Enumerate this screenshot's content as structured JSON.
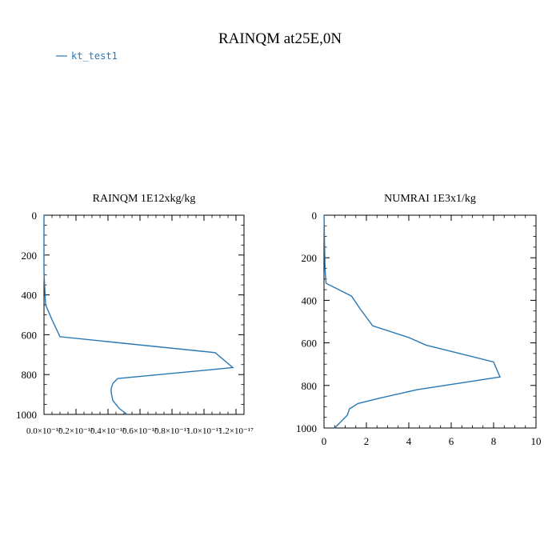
{
  "title": "RAINQM at25E,0N",
  "legend": {
    "label": "kt_test1",
    "color": "#2878b5"
  },
  "chart_data": [
    {
      "type": "line",
      "title": "RAINQM  1E12xkg/kg",
      "xlim": [
        0,
        1.25e-17
      ],
      "ylim": [
        1000,
        0
      ],
      "x_tick_labels": [
        "0.0×10⁻¹⁷",
        "0.2×10⁻¹⁷",
        "0.4×10⁻¹⁷",
        "0.6×10⁻¹⁷",
        "0.8×10⁻¹⁷",
        "1.0×10⁻¹⁷",
        "1.2×10⁻¹⁷"
      ],
      "y_ticks": [
        0,
        200,
        400,
        600,
        800,
        1000
      ],
      "series": [
        {
          "x": [
            0,
            0.0,
            1e-19,
            5e-19,
            1e-18,
            1.07e-17,
            1.18e-17,
            4.6e-18,
            4.3e-18,
            4.2e-18,
            4.2e-18,
            4.3e-18,
            4.7e-18,
            5.2e-18
          ],
          "y": [
            0,
            290,
            450,
            525,
            610,
            690,
            765,
            820,
            845,
            870,
            890,
            930,
            970,
            1000
          ]
        }
      ]
    },
    {
      "type": "line",
      "title": "NUMRAI  1E3x1/kg",
      "xlim": [
        0,
        10
      ],
      "ylim": [
        1000,
        0
      ],
      "x_ticks": [
        0,
        2,
        4,
        6,
        8,
        10
      ],
      "y_ticks": [
        0,
        200,
        400,
        600,
        800,
        1000
      ],
      "series": [
        {
          "x": [
            0,
            0.05,
            0.1,
            1.3,
            1.7,
            2.3,
            4.0,
            4.8,
            8.0,
            8.3,
            4.4,
            2.6,
            1.6,
            1.2,
            1.1,
            0.5
          ],
          "y": [
            0,
            250,
            320,
            380,
            440,
            520,
            575,
            610,
            690,
            760,
            820,
            860,
            885,
            910,
            940,
            1000
          ]
        }
      ]
    }
  ]
}
